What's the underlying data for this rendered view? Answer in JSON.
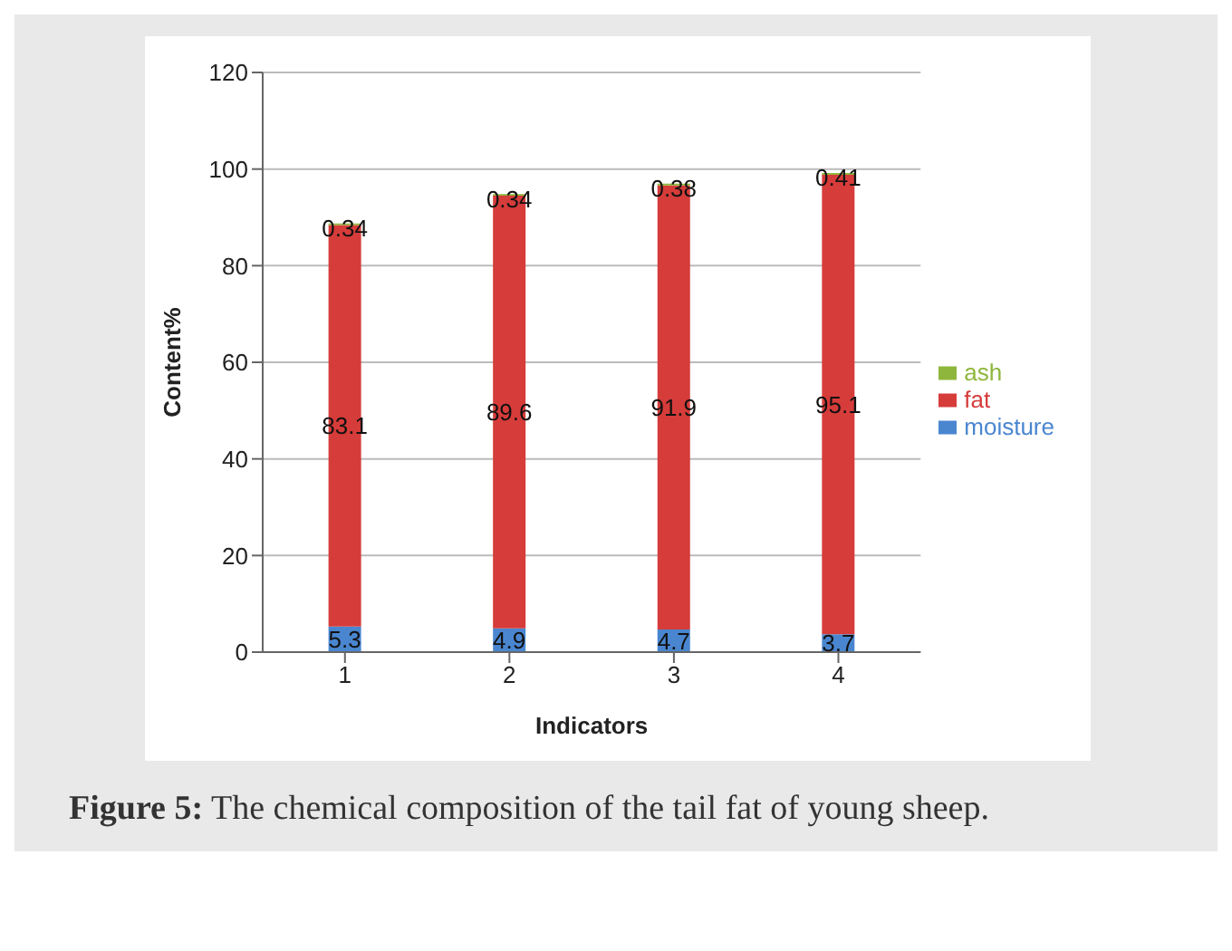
{
  "chart_data": {
    "type": "bar",
    "stacked": true,
    "xlabel": "Indicators",
    "ylabel": "Content%",
    "categories": [
      "1",
      "2",
      "3",
      "4"
    ],
    "series": [
      {
        "name": "moisture",
        "color": "#4a86d0",
        "values": [
          5.3,
          4.9,
          4.7,
          3.7
        ]
      },
      {
        "name": "fat",
        "color": "#d63c3a",
        "values": [
          83.1,
          89.6,
          91.9,
          95.1
        ]
      },
      {
        "name": "ash",
        "color": "#8fb63c",
        "values": [
          0.34,
          0.34,
          0.38,
          0.41
        ]
      }
    ],
    "ylim": [
      0,
      120
    ],
    "yticks": [
      0,
      20,
      40,
      60,
      80,
      100,
      120
    ],
    "grid": "y",
    "legend": "right",
    "data_labels": true,
    "annotations": [
      "Figure 5: The chemical composition of the tail fat of young sheep."
    ]
  }
}
